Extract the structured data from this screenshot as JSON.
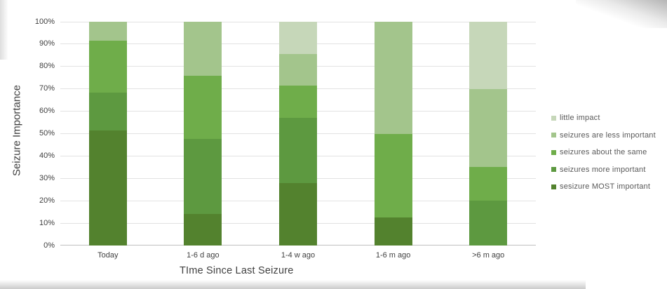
{
  "chart_data": {
    "type": "bar",
    "stacked": true,
    "units": "percent",
    "title": "",
    "xlabel": "TIme Since Last Seizure",
    "ylabel": "Seizure Importance",
    "categories": [
      "Today",
      "1-6 d ago",
      "1-4 w ago",
      "1-6 m ago",
      ">6 m ago"
    ],
    "series": [
      {
        "name": "sesizure MOST important",
        "color": "#53822e",
        "values": [
          51.5,
          14,
          28,
          12.5,
          0
        ]
      },
      {
        "name": "seizures more important",
        "color": "#5d9940",
        "values": [
          17,
          33.5,
          29,
          0,
          20
        ]
      },
      {
        "name": "seizures about the same",
        "color": "#6fad4a",
        "values": [
          23,
          28.5,
          14.5,
          37.5,
          15
        ]
      },
      {
        "name": "seizures are less important",
        "color": "#a3c58c",
        "values": [
          8.5,
          24,
          14,
          50,
          35
        ]
      },
      {
        "name": "little impact",
        "color": "#c6d7b9",
        "values": [
          0,
          0,
          14.5,
          0,
          30
        ]
      }
    ],
    "ylim": [
      0,
      100
    ],
    "yticks": [
      "0%",
      "10%",
      "20%",
      "30%",
      "40%",
      "50%",
      "60%",
      "70%",
      "80%",
      "90%",
      "100%"
    ],
    "grid": true,
    "legend_position": "right",
    "legend_order_top_to_bottom": [
      "little impact",
      "seizures are less important",
      "seizures about the same",
      "seizures more important",
      "sesizure MOST important"
    ]
  },
  "colors": {
    "background": "#ffffff",
    "gridline": "#e2e2e2",
    "axis_line": "#bfbfbf",
    "tick_text": "#404040",
    "axis_title_text": "#404040",
    "legend_text": "#595959"
  }
}
